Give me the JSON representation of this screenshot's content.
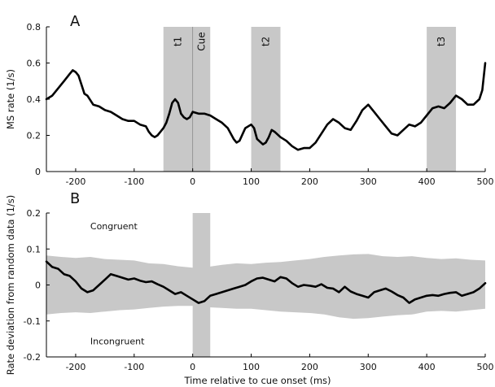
{
  "chart_data": [
    {
      "panel": "A",
      "type": "line",
      "ylabel": "MS rate (1/s)",
      "xlabel": "",
      "xlim": [
        -250,
        500
      ],
      "ylim": [
        0,
        0.8
      ],
      "xticks": [
        -200,
        -100,
        0,
        100,
        200,
        300,
        400,
        500
      ],
      "yticks": [
        0,
        0.2,
        0.4,
        0.6,
        0.8
      ],
      "yticklabels": [
        "0",
        "0.2",
        "0.4",
        "0.6",
        "0.8"
      ],
      "bands": [
        {
          "label": "t1",
          "x0": -50,
          "x1": 0
        },
        {
          "label": "Cue",
          "x0": 0,
          "x1": 30
        },
        {
          "label": "t2",
          "x0": 100,
          "x1": 150
        },
        {
          "label": "t3",
          "x0": 400,
          "x1": 450
        }
      ],
      "series": [
        {
          "x": [
            -250,
            -240,
            -230,
            -220,
            -210,
            -205,
            -200,
            -195,
            -190,
            -185,
            -180,
            -170,
            -160,
            -150,
            -140,
            -130,
            -120,
            -110,
            -100,
            -90,
            -80,
            -75,
            -70,
            -65,
            -60,
            -55,
            -50,
            -45,
            -40,
            -35,
            -30,
            -25,
            -20,
            -15,
            -10,
            -5,
            0,
            10,
            20,
            30,
            40,
            50,
            60,
            70,
            75,
            80,
            90,
            100,
            105,
            110,
            120,
            125,
            130,
            135,
            140,
            150,
            160,
            170,
            180,
            190,
            200,
            210,
            220,
            230,
            240,
            250,
            260,
            270,
            280,
            290,
            300,
            310,
            320,
            330,
            340,
            350,
            360,
            370,
            380,
            390,
            400,
            410,
            420,
            430,
            440,
            450,
            460,
            470,
            480,
            490,
            495,
            500
          ],
          "y": [
            0.4,
            0.42,
            0.46,
            0.5,
            0.54,
            0.56,
            0.55,
            0.53,
            0.48,
            0.43,
            0.42,
            0.37,
            0.36,
            0.34,
            0.33,
            0.31,
            0.29,
            0.28,
            0.28,
            0.26,
            0.25,
            0.22,
            0.2,
            0.19,
            0.2,
            0.22,
            0.24,
            0.27,
            0.32,
            0.38,
            0.4,
            0.38,
            0.32,
            0.3,
            0.29,
            0.3,
            0.33,
            0.32,
            0.32,
            0.31,
            0.29,
            0.27,
            0.24,
            0.18,
            0.16,
            0.17,
            0.24,
            0.26,
            0.24,
            0.18,
            0.15,
            0.16,
            0.19,
            0.23,
            0.22,
            0.19,
            0.17,
            0.14,
            0.12,
            0.13,
            0.13,
            0.16,
            0.21,
            0.26,
            0.29,
            0.27,
            0.24,
            0.23,
            0.28,
            0.34,
            0.37,
            0.33,
            0.29,
            0.25,
            0.21,
            0.2,
            0.23,
            0.26,
            0.25,
            0.27,
            0.31,
            0.35,
            0.36,
            0.35,
            0.38,
            0.42,
            0.4,
            0.37,
            0.37,
            0.4,
            0.45,
            0.6
          ]
        }
      ]
    },
    {
      "panel": "B",
      "type": "area",
      "ylabel": "Rate deviation from random data (1/s)",
      "xlabel": "Time relative to cue onset (ms)",
      "xlim": [
        -250,
        500
      ],
      "ylim": [
        -0.2,
        0.2
      ],
      "xticks": [
        -200,
        -100,
        0,
        100,
        200,
        300,
        400,
        500
      ],
      "yticks": [
        -0.2,
        -0.1,
        0,
        0.1,
        0.2
      ],
      "yticklabels": [
        "-0.2",
        "-0.1",
        "0",
        "0.1",
        "0.2"
      ],
      "bands": [
        {
          "label": "",
          "x0": 0,
          "x1": 30
        }
      ],
      "annotations": [
        {
          "text": "Congruent",
          "x": -175,
          "y": 0.155
        },
        {
          "text": "Incongruent",
          "x": -175,
          "y": -0.165
        }
      ],
      "envelope": {
        "x": [
          -250,
          -225,
          -200,
          -175,
          -150,
          -125,
          -100,
          -75,
          -50,
          -25,
          0,
          25,
          50,
          75,
          100,
          125,
          150,
          175,
          200,
          225,
          250,
          275,
          300,
          325,
          350,
          375,
          400,
          425,
          450,
          475,
          500
        ],
        "upper": [
          0.082,
          0.078,
          0.075,
          0.078,
          0.072,
          0.07,
          0.068,
          0.06,
          0.058,
          0.052,
          0.048,
          0.05,
          0.056,
          0.06,
          0.058,
          0.062,
          0.064,
          0.068,
          0.072,
          0.078,
          0.082,
          0.085,
          0.086,
          0.08,
          0.078,
          0.08,
          0.075,
          0.072,
          0.074,
          0.07,
          0.068
        ],
        "lower": [
          -0.082,
          -0.078,
          -0.076,
          -0.078,
          -0.074,
          -0.07,
          -0.068,
          -0.064,
          -0.06,
          -0.058,
          -0.058,
          -0.062,
          -0.064,
          -0.066,
          -0.066,
          -0.07,
          -0.074,
          -0.076,
          -0.078,
          -0.082,
          -0.09,
          -0.094,
          -0.092,
          -0.088,
          -0.084,
          -0.082,
          -0.074,
          -0.072,
          -0.074,
          -0.07,
          -0.066
        ]
      },
      "series": [
        {
          "x": [
            -250,
            -240,
            -230,
            -220,
            -210,
            -200,
            -190,
            -180,
            -170,
            -160,
            -150,
            -140,
            -130,
            -120,
            -110,
            -100,
            -90,
            -80,
            -70,
            -60,
            -50,
            -40,
            -30,
            -20,
            -10,
            0,
            10,
            20,
            30,
            40,
            50,
            60,
            70,
            80,
            90,
            100,
            110,
            120,
            130,
            140,
            150,
            160,
            170,
            180,
            190,
            200,
            210,
            220,
            230,
            240,
            250,
            260,
            270,
            280,
            290,
            300,
            310,
            320,
            330,
            340,
            350,
            360,
            370,
            380,
            390,
            400,
            410,
            420,
            430,
            440,
            450,
            460,
            470,
            480,
            490,
            500
          ],
          "y": [
            0.065,
            0.05,
            0.045,
            0.03,
            0.025,
            0.01,
            -0.01,
            -0.02,
            -0.015,
            0.0,
            0.015,
            0.03,
            0.025,
            0.02,
            0.015,
            0.018,
            0.012,
            0.008,
            0.01,
            0.002,
            -0.005,
            -0.015,
            -0.025,
            -0.02,
            -0.03,
            -0.04,
            -0.05,
            -0.045,
            -0.03,
            -0.025,
            -0.02,
            -0.015,
            -0.01,
            -0.005,
            0.0,
            0.01,
            0.018,
            0.02,
            0.015,
            0.01,
            0.022,
            0.018,
            0.005,
            -0.005,
            0.0,
            -0.002,
            -0.005,
            0.002,
            -0.008,
            -0.01,
            -0.02,
            -0.005,
            -0.018,
            -0.025,
            -0.03,
            -0.035,
            -0.02,
            -0.015,
            -0.01,
            -0.018,
            -0.028,
            -0.035,
            -0.05,
            -0.04,
            -0.035,
            -0.03,
            -0.028,
            -0.03,
            -0.025,
            -0.022,
            -0.02,
            -0.03,
            -0.025,
            -0.02,
            -0.01,
            0.005
          ]
        }
      ]
    }
  ]
}
